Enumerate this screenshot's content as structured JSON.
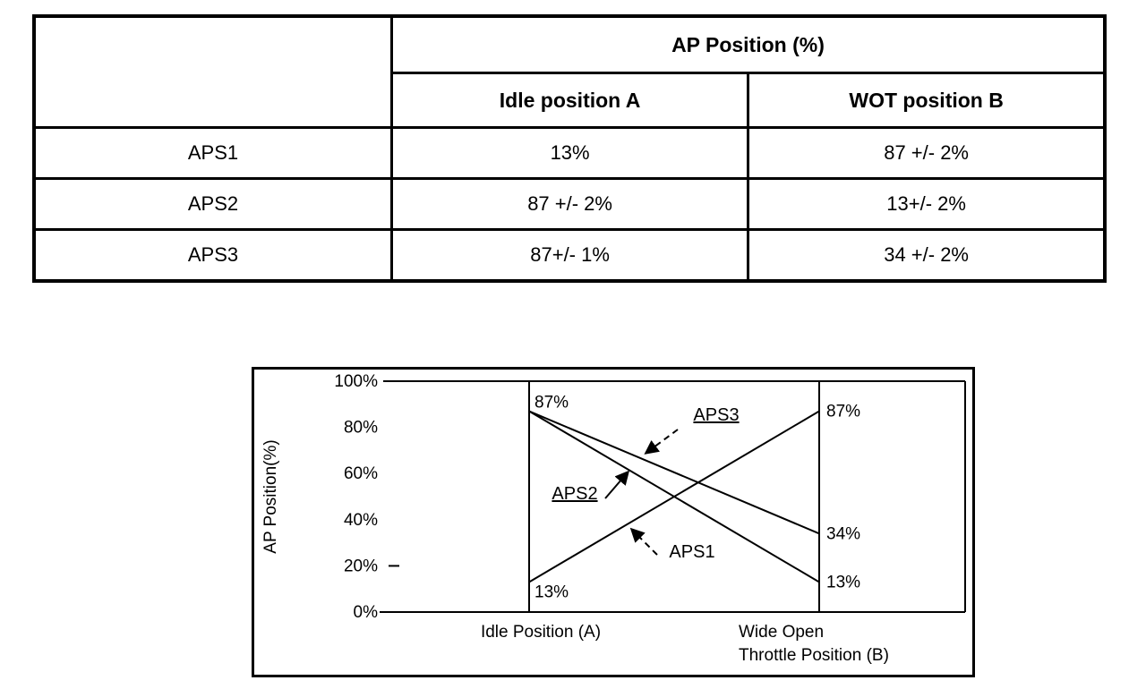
{
  "colors": {
    "ink": "#000000",
    "background": "#ffffff"
  },
  "table": {
    "header_top": "AP Position (%)",
    "columns": [
      "Idle position A",
      "WOT position B"
    ],
    "rows": [
      {
        "label": "APS1",
        "cells": [
          "13%",
          "87 +/- 2%"
        ]
      },
      {
        "label": "APS2",
        "cells": [
          "87 +/- 2%",
          "13+/- 2%"
        ]
      },
      {
        "label": "APS3",
        "cells": [
          "87+/- 1%",
          "34 +/- 2%"
        ]
      }
    ]
  },
  "chart_data": {
    "type": "line",
    "title": "",
    "ylabel": "AP Position(%)",
    "xlabel": "",
    "ylim": [
      0,
      100
    ],
    "yticks": [
      100,
      80,
      60,
      40,
      20,
      0
    ],
    "ytick_suffix": "%",
    "grid": "off",
    "legend": "inline-annotations",
    "x_categories": [
      "Idle Position (A)",
      "Wide Open Throttle Position (B)"
    ],
    "x_label_idle": "Idle Position (A)",
    "x_label_wot": [
      "Wide Open",
      "Throttle Position (B)"
    ],
    "series": [
      {
        "name": "APS1",
        "values": [
          13,
          87
        ]
      },
      {
        "name": "APS2",
        "values": [
          87,
          13
        ]
      },
      {
        "name": "APS3",
        "values": [
          87,
          34
        ]
      }
    ],
    "point_labels": [
      {
        "text": "87%",
        "x": 0,
        "value": 87
      },
      {
        "text": "13%",
        "x": 0,
        "value": 13
      },
      {
        "text": "87%",
        "x": 1,
        "value": 87
      },
      {
        "text": "34%",
        "x": 1,
        "value": 34
      },
      {
        "text": "13%",
        "x": 1,
        "value": 13
      }
    ],
    "annotations": [
      {
        "text": "APS3",
        "underline": true,
        "dashed": true
      },
      {
        "text": "APS2",
        "underline": true,
        "dashed": false
      },
      {
        "text": "APS1",
        "underline": false,
        "dashed": true
      }
    ]
  }
}
